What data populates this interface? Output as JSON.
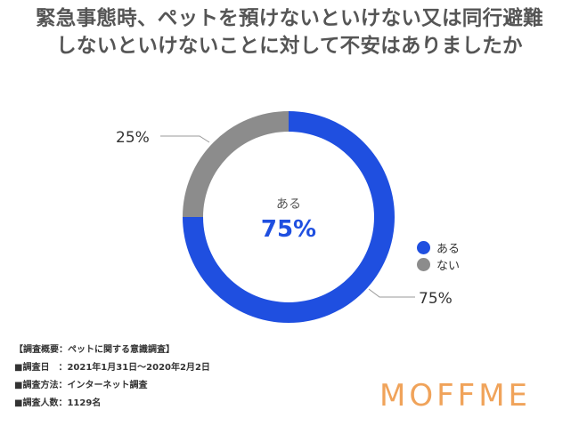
{
  "title_lines": [
    "緊急事態時、ペットを預けないといけない又は同行避難",
    "しないといけないことに対して不安はありましたか"
  ],
  "chart_data": {
    "type": "pie",
    "title": "緊急事態時、ペットを預けないといけない又は同行避難しないといけないことに対して不安はありましたか",
    "categories": [
      "ある",
      "ない"
    ],
    "values": [
      75,
      25
    ],
    "value_labels": [
      "75%",
      "25%"
    ],
    "colors": [
      "#1f4fe0",
      "#8c8c8c"
    ],
    "center_label": "ある",
    "center_value": "75%",
    "legend_position": "right"
  },
  "legend": [
    {
      "label": "ある",
      "color": "#1f4fe0"
    },
    {
      "label": "ない",
      "color": "#8c8c8c"
    }
  ],
  "footer": [
    "【調査概要：ペットに関する意識調査】",
    "■調査日　：2021年1月31日〜2020年2月2日",
    "■調査方法：インターネット調査",
    "■調査人数：1129名"
  ],
  "logo": "MOFFME"
}
